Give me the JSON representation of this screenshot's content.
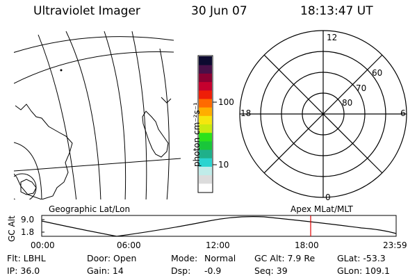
{
  "header": {
    "title": "Ultraviolet Imager",
    "date": "30 Jun 07",
    "time": "18:13:47 UT"
  },
  "colorbar": {
    "unit_label": "photon cm⁻²s⁻¹",
    "ticks": [
      "100",
      "10"
    ],
    "scale": "log"
  },
  "polar_plot": {
    "mlt_labels": {
      "top": "12",
      "bottom": "0",
      "left": "18",
      "right": "6"
    },
    "lat_labels": [
      "60",
      "70",
      "80"
    ]
  },
  "altitude_strip": {
    "left_label": "Geographic Lat/Lon",
    "right_label": "Apex MLat/MLT",
    "y_axis_label": "GC Alt",
    "y_ticks": [
      "9.0",
      "1.8"
    ],
    "x_ticks": [
      "00:00",
      "06:00",
      "12:00",
      "18:00",
      "23:59"
    ],
    "marker_time": "18:13:47",
    "marker_color": "#e00000"
  },
  "status": {
    "flt": "Flt: LBHL",
    "ip": "IP: 36.0",
    "door": "Door: Open",
    "gain": "Gain: 14",
    "mode_label": "Mode:",
    "mode_value": "Normal",
    "dsp_label": "Dsp:",
    "dsp_value": "-0.9",
    "gc_alt": "GC Alt: 7.9 Re",
    "seq": "Seq: 39",
    "glat": "GLat: -53.3",
    "glon": "GLon: 109.1"
  },
  "colors": {
    "colorbar": [
      "#ffffff",
      "#dcdcdc",
      "#c0ece9",
      "#2ad4d0",
      "#1fb08a",
      "#19c63a",
      "#2be21a",
      "#c8ea10",
      "#f5e60e",
      "#ffae00",
      "#ff6a00",
      "#ee1e08",
      "#c5002e",
      "#8a0032",
      "#481048",
      "#0c0a30"
    ]
  }
}
